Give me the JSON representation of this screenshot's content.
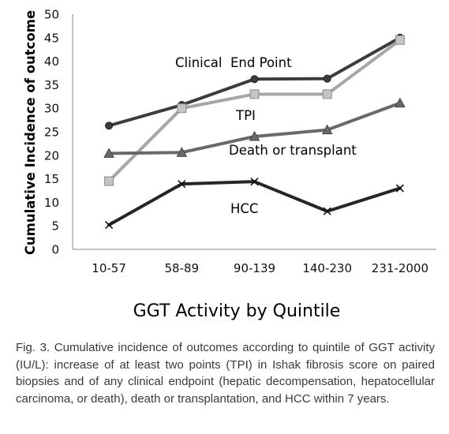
{
  "chart_data": {
    "type": "line",
    "xlabel": "GGT Activity by Quintile",
    "ylabel": "Cumulative Incidence of outcome",
    "ylim": [
      0,
      50
    ],
    "yticks": [
      "0",
      "5",
      "10",
      "15",
      "20",
      "25",
      "30",
      "35",
      "40",
      "45",
      "50"
    ],
    "categories": [
      "10-57",
      "58-89",
      "90-139",
      "140-230",
      "231-2000"
    ],
    "grid": false,
    "legend": "none",
    "series": [
      {
        "name": "Clinical  End Point",
        "values": [
          26.3,
          30.7,
          36.2,
          36.3,
          45.0
        ],
        "color": "#3c3c3c",
        "marker": "circle"
      },
      {
        "name": "TPI",
        "values": [
          14.5,
          30.0,
          33.0,
          33.0,
          44.5
        ],
        "color": "#a6a6a6",
        "marker": "square"
      },
      {
        "name": "Death or transplant",
        "values": [
          20.4,
          20.6,
          24.0,
          25.4,
          31.1
        ],
        "color": "#696969",
        "marker": "triangle"
      },
      {
        "name": "HCC",
        "values": [
          5.2,
          13.9,
          14.4,
          8.1,
          13.0
        ],
        "color": "#262626",
        "marker": "x"
      }
    ]
  },
  "caption": "Fig. 3. Cumulative incidence of outcomes according to quintile of GGT activity (IU/L): increase of at least two points (TPI) in Ishak fibrosis score on paired biopsies and of any clinical endpoint (hepatic decompensation, hepatocellular carcinoma, or death), death or transplantation, and HCC within 7 years."
}
